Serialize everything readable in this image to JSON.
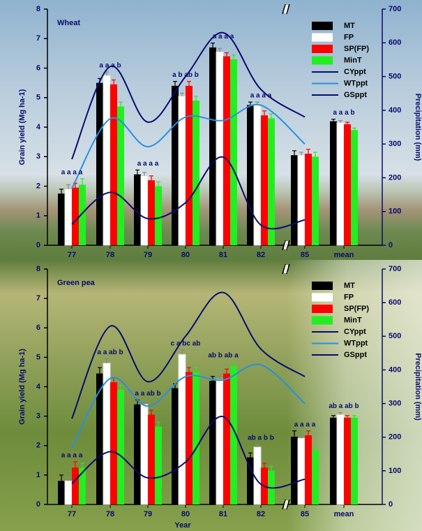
{
  "chart_data": [
    {
      "type": "bar",
      "title": "Wheat",
      "categories": [
        "77",
        "78",
        "79",
        "80",
        "81",
        "82",
        "85",
        "mean"
      ],
      "series": [
        {
          "name": "MT",
          "color": "#000000",
          "values": [
            1.75,
            5.5,
            2.4,
            5.4,
            6.7,
            4.75,
            3.05,
            4.2
          ],
          "errors": [
            0.15,
            0.15,
            0.15,
            0.15,
            0.15,
            0.1,
            0.15,
            0.07
          ]
        },
        {
          "name": "FP",
          "color": "#ffffff",
          "values": [
            1.9,
            5.75,
            2.35,
            5.05,
            6.55,
            4.75,
            3.05,
            4.15
          ],
          "errors": [
            0.15,
            0.12,
            0.12,
            0.1,
            0.12,
            0.1,
            0.1,
            0.07
          ]
        },
        {
          "name": "SP(FP)",
          "color": "#ff0000",
          "values": [
            1.95,
            5.45,
            2.2,
            5.4,
            6.4,
            4.4,
            3.1,
            4.1
          ],
          "errors": [
            0.15,
            0.15,
            0.15,
            0.15,
            0.12,
            0.15,
            0.15,
            0.07
          ]
        },
        {
          "name": "MinT",
          "color": "#22ee22",
          "values": [
            2.05,
            4.7,
            2.0,
            4.9,
            6.3,
            4.3,
            3.0,
            3.9
          ],
          "errors": [
            0.2,
            0.15,
            0.15,
            0.15,
            0.15,
            0.15,
            0.15,
            0.07
          ]
        },
        {
          "name": "CYppt",
          "type": "line",
          "axis": "y2",
          "color": "#0a0a6e",
          "values": [
            255,
            530,
            365,
            500,
            630,
            462,
            380,
            null
          ]
        },
        {
          "name": "WTppt",
          "type": "line",
          "axis": "y2",
          "color": "#2a8fe0",
          "values": [
            168,
            375,
            292,
            380,
            370,
            415,
            300,
            null
          ]
        },
        {
          "name": "GSppt",
          "type": "line",
          "axis": "y2",
          "color": "#0a0a6e",
          "values": [
            62,
            157,
            79,
            126,
            261,
            60,
            75,
            null
          ]
        }
      ],
      "significance": [
        "a a a a",
        "a a a b",
        "a a a a",
        "a b ab b",
        "a a a a",
        "a a a a",
        null,
        "a a a b"
      ],
      "ylabel": "Grain yield (Mg ha-1)",
      "y2label": "Precipitation (mm)",
      "ylim": [
        0,
        8
      ],
      "yticks": [
        0,
        1,
        2,
        3,
        4,
        5,
        6,
        7,
        8
      ],
      "y2lim": [
        0,
        700
      ],
      "y2ticks": [
        0,
        100,
        200,
        300,
        400,
        500,
        600,
        700
      ],
      "legend": "upper right"
    },
    {
      "type": "bar",
      "title": "Green pea",
      "categories": [
        "77",
        "78",
        "79",
        "80",
        "81",
        "82",
        "85",
        "mean"
      ],
      "series": [
        {
          "name": "MT",
          "color": "#000000",
          "values": [
            0.8,
            4.45,
            3.4,
            3.95,
            4.2,
            1.6,
            2.3,
            2.95
          ],
          "errors": [
            0.2,
            0.2,
            0.15,
            0.15,
            0.15,
            0.15,
            0.2,
            0.07
          ]
        },
        {
          "name": "FP",
          "color": "#ffffff",
          "values": [
            0.8,
            4.8,
            3.4,
            5.1,
            4.25,
            1.95,
            2.25,
            3.05
          ],
          "errors": [
            0.1,
            0.15,
            0.15,
            0.15,
            0.1,
            0.1,
            0.1,
            0.07
          ]
        },
        {
          "name": "SP(FP)",
          "color": "#ff0000",
          "values": [
            1.25,
            4.15,
            3.05,
            4.5,
            4.45,
            1.25,
            2.35,
            2.95
          ],
          "errors": [
            0.2,
            0.15,
            0.15,
            0.15,
            0.15,
            0.15,
            0.15,
            0.07
          ]
        },
        {
          "name": "MinT",
          "color": "#22ee22",
          "values": [
            1.25,
            3.9,
            2.65,
            4.5,
            4.7,
            1.15,
            1.85,
            2.95
          ],
          "errors": [
            0.15,
            0.15,
            0.15,
            0.15,
            0.15,
            0.15,
            0.15,
            0.07
          ]
        },
        {
          "name": "CYppt",
          "type": "line",
          "axis": "y2",
          "color": "#0a0a6e",
          "values": [
            255,
            530,
            365,
            500,
            630,
            462,
            380,
            null
          ]
        },
        {
          "name": "WTppt",
          "type": "line",
          "axis": "y2",
          "color": "#2a8fe0",
          "values": [
            168,
            375,
            292,
            380,
            370,
            415,
            300,
            null
          ]
        },
        {
          "name": "GSppt",
          "type": "line",
          "axis": "y2",
          "color": "#0a0a6e",
          "values": [
            62,
            157,
            79,
            126,
            261,
            60,
            75,
            null
          ]
        }
      ],
      "significance": [
        "a a a a",
        "a a ab b",
        "a a ab b",
        "c a bc ab",
        "ab b ab a",
        "ab a b b",
        "a a a a",
        "ab a ab b"
      ],
      "ylabel": "Grain yield (Mg ha-1)",
      "y2label": "Precipitation (mm)",
      "xlabel": "Year",
      "ylim": [
        0,
        8
      ],
      "yticks": [
        0,
        1,
        2,
        3,
        4,
        5,
        6,
        7,
        8
      ],
      "y2lim": [
        0,
        700
      ],
      "y2ticks": [
        0,
        100,
        200,
        300,
        400,
        500,
        600,
        700
      ],
      "legend": "upper right"
    }
  ]
}
